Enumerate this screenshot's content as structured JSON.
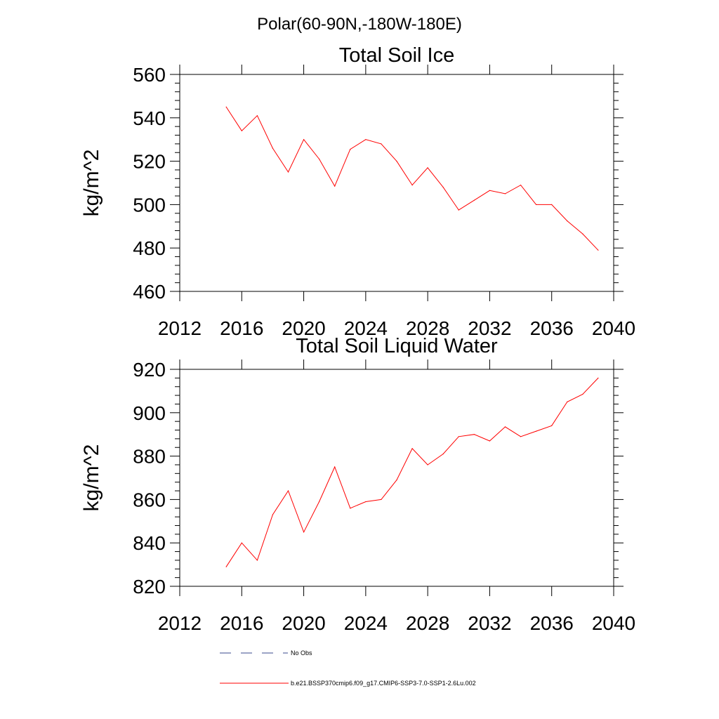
{
  "main_title": "Polar(60-90N,-180W-180E)",
  "chart_data": [
    {
      "type": "line",
      "title": "Total Soil Ice",
      "xlabel": "",
      "ylabel": "kg/m^2",
      "xlim": [
        2012,
        2040
      ],
      "ylim": [
        460,
        560
      ],
      "xticks": [
        2012,
        2016,
        2020,
        2024,
        2028,
        2032,
        2036,
        2040
      ],
      "yticks": [
        460,
        480,
        500,
        520,
        540,
        560
      ],
      "series": [
        {
          "name": "b.e21.BSSP370cmip6.f09_g17.CMIP6-SSP3-7.0-SSP1-2.6Lu.002",
          "color": "#ff0000",
          "x": [
            2015,
            2016,
            2017,
            2018,
            2019,
            2020,
            2021,
            2022,
            2023,
            2024,
            2025,
            2026,
            2027,
            2028,
            2029,
            2030,
            2031,
            2032,
            2033,
            2034,
            2035,
            2036,
            2037,
            2038,
            2039
          ],
          "y": [
            545,
            534,
            541,
            526,
            515,
            530,
            521,
            508.5,
            525.5,
            530,
            528,
            520,
            509,
            517,
            508,
            497.5,
            502,
            506.5,
            505,
            509,
            500,
            500,
            492.5,
            486.5,
            479
          ]
        }
      ]
    },
    {
      "type": "line",
      "title": "Total Soil Liquid Water",
      "xlabel": "",
      "ylabel": "kg/m^2",
      "xlim": [
        2012,
        2040
      ],
      "ylim": [
        820,
        925
      ],
      "xticks": [
        2012,
        2016,
        2020,
        2024,
        2028,
        2032,
        2036,
        2040
      ],
      "yticks": [
        820,
        840,
        860,
        880,
        900,
        920
      ],
      "series": [
        {
          "name": "b.e21.BSSP370cmip6.f09_g17.CMIP6-SSP3-7.0-SSP1-2.6Lu.002",
          "color": "#ff0000",
          "x": [
            2015,
            2016,
            2017,
            2018,
            2019,
            2020,
            2021,
            2022,
            2023,
            2024,
            2025,
            2026,
            2027,
            2028,
            2029,
            2030,
            2031,
            2032,
            2033,
            2034,
            2035,
            2036,
            2037,
            2038,
            2039
          ],
          "y": [
            829,
            840,
            832,
            853,
            864,
            845,
            859,
            875,
            856,
            859,
            860,
            869,
            883.5,
            876,
            881,
            889,
            890,
            887,
            893.5,
            889,
            891.5,
            894,
            905,
            908.5,
            916
          ]
        }
      ]
    }
  ],
  "legend": [
    {
      "label": "No Obs",
      "color": "#3a4a8c",
      "style": "dashed"
    },
    {
      "label": "b.e21.BSSP370cmip6.f09_g17.CMIP6-SSP3-7.0-SSP1-2.6Lu.002",
      "color": "#ff0000",
      "style": "solid"
    }
  ]
}
